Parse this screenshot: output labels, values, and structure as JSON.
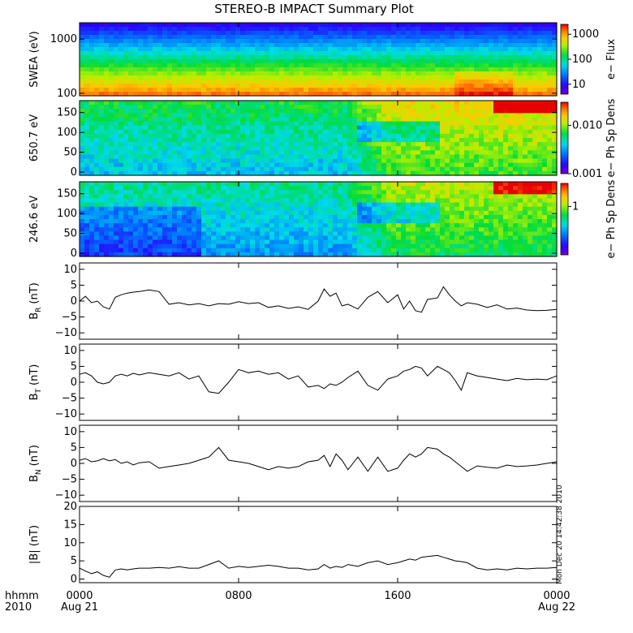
{
  "title": "STEREO-B IMPACT Summary Plot",
  "stamp": "Mon Dec 20 14:42:38 2010",
  "time_axis": {
    "row1_label": "hhmm",
    "row2_label": "2010",
    "ticks": [
      {
        "t": 0,
        "label": "0000",
        "date": "Aug 21"
      },
      {
        "t": 8,
        "label": "0800",
        "date": ""
      },
      {
        "t": 16,
        "label": "1600",
        "date": ""
      },
      {
        "t": 24,
        "label": "0000",
        "date": "Aug 22"
      }
    ],
    "range_hours": [
      0,
      24
    ]
  },
  "chart_data": [
    {
      "type": "heatmap",
      "ylabel": "SWEA (eV)",
      "yscale": "log",
      "ylim": [
        90,
        2000
      ],
      "yticks": [
        {
          "v": 100,
          "label": "100"
        },
        {
          "v": 1000,
          "label": "1000"
        }
      ],
      "colorbar": {
        "label": "e− Flux",
        "scale": "log",
        "range": [
          4,
          2500
        ],
        "ticks": [
          {
            "v": 10,
            "label": "10"
          },
          {
            "v": 100,
            "label": "100"
          },
          {
            "v": 1000,
            "label": "1000"
          }
        ]
      }
    },
    {
      "type": "heatmap",
      "ylabel": "650.7 eV",
      "ylim": [
        -8,
        180
      ],
      "yticks": [
        {
          "v": 0,
          "label": "0"
        },
        {
          "v": 50,
          "label": "50"
        },
        {
          "v": 100,
          "label": "100"
        },
        {
          "v": 150,
          "label": "150"
        }
      ],
      "colorbar": {
        "label": "e− Ph Sp Dens",
        "scale": "log",
        "range": [
          0.001,
          0.03
        ],
        "ticks": [
          {
            "v": 0.001,
            "label": "0.001"
          },
          {
            "v": 0.01,
            "label": "0.010"
          }
        ]
      }
    },
    {
      "type": "heatmap",
      "ylabel": "246.6 eV",
      "ylim": [
        -8,
        180
      ],
      "yticks": [
        {
          "v": 0,
          "label": "0"
        },
        {
          "v": 50,
          "label": "50"
        },
        {
          "v": 100,
          "label": "100"
        },
        {
          "v": 150,
          "label": "150"
        }
      ],
      "colorbar": {
        "label": "e− Ph Sp Dens",
        "scale": "log",
        "range": [
          0.1,
          3
        ],
        "ticks": [
          {
            "v": 1,
            "label": "1"
          }
        ]
      }
    },
    {
      "type": "line",
      "ylabel_base": "B",
      "ylabel_sub": "R",
      "ylabel_unit": "(nT)",
      "ylim": [
        -12,
        12
      ],
      "yticks": [
        {
          "v": -10,
          "label": "−10"
        },
        {
          "v": -5,
          "label": "−5"
        },
        {
          "v": 0,
          "label": "0"
        },
        {
          "v": 5,
          "label": "5"
        },
        {
          "v": 10,
          "label": "10"
        }
      ],
      "series": [
        {
          "x": [
            0,
            0.3,
            0.6,
            0.9,
            1.2,
            1.5,
            1.8,
            2.1,
            2.4,
            2.7,
            3.0,
            3.5,
            4.0,
            4.5,
            5.0,
            5.5,
            6.0,
            6.5,
            7.0,
            7.5,
            8.0,
            8.5,
            9.0,
            9.5,
            10.0,
            10.5,
            11.0,
            11.5,
            12.0,
            12.3,
            12.6,
            12.9,
            13.2,
            13.5,
            14.0,
            14.5,
            15.0,
            15.5,
            16.0,
            16.3,
            16.6,
            16.9,
            17.2,
            17.5,
            18.0,
            18.3,
            18.6,
            18.9,
            19.2,
            19.5,
            20.0,
            20.5,
            21.0,
            21.5,
            22.0,
            22.5,
            23.0,
            23.5,
            24.0
          ],
          "y": [
            0,
            1.5,
            -0.5,
            0,
            -1.8,
            -2.5,
            1.2,
            2,
            2.5,
            2.8,
            3,
            3.5,
            3,
            -1,
            -0.5,
            -1.2,
            -0.8,
            -1.5,
            -0.8,
            -1,
            -0.2,
            -0.8,
            -0.5,
            -2,
            -1.5,
            -2.3,
            -1.8,
            -2.6,
            0,
            3.8,
            1.5,
            2.5,
            -1.5,
            -1,
            -2.5,
            1.2,
            3,
            -0.5,
            2,
            -2.5,
            0,
            -3,
            -3.5,
            0.5,
            1,
            4.5,
            2,
            0,
            -1.5,
            -0.5,
            -1,
            -2,
            -1.2,
            -2.5,
            -2.2,
            -2.8,
            -3,
            -2.9,
            -2.6
          ]
        }
      ]
    },
    {
      "type": "line",
      "ylabel_base": "B",
      "ylabel_sub": "T",
      "ylabel_unit": "(nT)",
      "ylim": [
        -12,
        12
      ],
      "yticks": [
        {
          "v": -10,
          "label": "−10"
        },
        {
          "v": -5,
          "label": "−5"
        },
        {
          "v": 0,
          "label": "0"
        },
        {
          "v": 5,
          "label": "5"
        },
        {
          "v": 10,
          "label": "10"
        }
      ],
      "series": [
        {
          "x": [
            0,
            0.3,
            0.6,
            0.9,
            1.2,
            1.5,
            1.8,
            2.1,
            2.4,
            2.7,
            3.0,
            3.5,
            4.0,
            4.5,
            5.0,
            5.5,
            6.0,
            6.5,
            7.0,
            7.5,
            8.0,
            8.5,
            9.0,
            9.5,
            10.0,
            10.5,
            11.0,
            11.5,
            12.0,
            12.3,
            12.6,
            12.9,
            13.2,
            13.5,
            14.0,
            14.5,
            15.0,
            15.5,
            16.0,
            16.3,
            16.6,
            16.9,
            17.2,
            17.5,
            18.0,
            18.3,
            18.6,
            18.9,
            19.2,
            19.5,
            20.0,
            20.5,
            21.0,
            21.5,
            22.0,
            22.5,
            23.0,
            23.5,
            24.0
          ],
          "y": [
            2.5,
            3,
            2,
            0,
            -0.5,
            0,
            2,
            2.5,
            2,
            2.8,
            2.3,
            3,
            2.5,
            2,
            3,
            1,
            2,
            -3,
            -3.5,
            0,
            4,
            3,
            3.5,
            2.5,
            3,
            1,
            2,
            -1.5,
            -1,
            -2,
            -0.5,
            -1,
            0,
            1.5,
            3.5,
            -1,
            -2.5,
            1,
            2,
            3.5,
            4,
            5,
            4.5,
            2,
            5,
            4,
            3,
            0.5,
            -2.5,
            3,
            2,
            1.5,
            1,
            0.5,
            1.2,
            0.8,
            1,
            0.8,
            2
          ]
        }
      ]
    },
    {
      "type": "line",
      "ylabel_base": "B",
      "ylabel_sub": "N",
      "ylabel_unit": "(nT)",
      "ylim": [
        -12,
        12
      ],
      "yticks": [
        {
          "v": -10,
          "label": "−10"
        },
        {
          "v": -5,
          "label": "−5"
        },
        {
          "v": 0,
          "label": "0"
        },
        {
          "v": 5,
          "label": "5"
        },
        {
          "v": 10,
          "label": "10"
        }
      ],
      "series": [
        {
          "x": [
            0,
            0.3,
            0.6,
            0.9,
            1.2,
            1.5,
            1.8,
            2.1,
            2.4,
            2.7,
            3.0,
            3.5,
            4.0,
            4.5,
            5.0,
            5.5,
            6.0,
            6.5,
            7.0,
            7.5,
            8.0,
            8.5,
            9.0,
            9.5,
            10.0,
            10.5,
            11.0,
            11.5,
            12.0,
            12.3,
            12.6,
            12.9,
            13.2,
            13.5,
            14.0,
            14.5,
            15.0,
            15.5,
            16.0,
            16.3,
            16.6,
            16.9,
            17.2,
            17.5,
            18.0,
            18.3,
            18.6,
            18.9,
            19.2,
            19.5,
            20.0,
            20.5,
            21.0,
            21.5,
            22.0,
            22.5,
            23.0,
            23.5,
            24.0
          ],
          "y": [
            1,
            1.5,
            0.5,
            0.8,
            1.5,
            0.8,
            1.2,
            0,
            0.5,
            -0.5,
            0.2,
            0.5,
            -1.5,
            -1,
            -0.5,
            0,
            1,
            2,
            5,
            1,
            0.5,
            0,
            -1,
            -2,
            -1,
            -1.5,
            -1,
            0.5,
            1,
            2.5,
            -1,
            3,
            1,
            -2,
            2,
            -2.5,
            2,
            -2.5,
            -1.5,
            1,
            3,
            2,
            3,
            5,
            4.5,
            3,
            2,
            0.5,
            -1,
            -2.5,
            -0.8,
            -1.2,
            -1.5,
            -0.5,
            -1,
            -0.8,
            -0.5,
            0,
            0.5
          ]
        }
      ]
    },
    {
      "type": "line",
      "ylabel": "|B| (nT)",
      "ylim": [
        -1,
        20
      ],
      "yticks": [
        {
          "v": 0,
          "label": "0"
        },
        {
          "v": 5,
          "label": "5"
        },
        {
          "v": 10,
          "label": "10"
        },
        {
          "v": 15,
          "label": "15"
        },
        {
          "v": 20,
          "label": "20"
        }
      ],
      "series": [
        {
          "x": [
            0,
            0.3,
            0.6,
            0.9,
            1.2,
            1.5,
            1.8,
            2.1,
            2.4,
            2.7,
            3.0,
            3.5,
            4.0,
            4.5,
            5.0,
            5.5,
            6.0,
            6.5,
            7.0,
            7.5,
            8.0,
            8.5,
            9.0,
            9.5,
            10.0,
            10.5,
            11.0,
            11.5,
            12.0,
            12.3,
            12.6,
            12.9,
            13.2,
            13.5,
            14.0,
            14.5,
            15.0,
            15.5,
            16.0,
            16.3,
            16.6,
            16.9,
            17.2,
            17.5,
            18.0,
            18.3,
            18.6,
            18.9,
            19.2,
            19.5,
            20.0,
            20.5,
            21.0,
            21.5,
            22.0,
            22.5,
            23.0,
            23.5,
            24.0
          ],
          "y": [
            3,
            2.2,
            1.5,
            2,
            1,
            0.5,
            2.5,
            2.8,
            2.5,
            2.8,
            3,
            3,
            3.2,
            3,
            3.4,
            3,
            3,
            4,
            5,
            3,
            3.5,
            3.2,
            3.5,
            3.8,
            3.5,
            3,
            3,
            2.5,
            2.8,
            4,
            3,
            3.5,
            3.2,
            4,
            3.5,
            4.5,
            5,
            4,
            4.5,
            5,
            5.5,
            5.2,
            6,
            6.2,
            6.5,
            6,
            5.5,
            5,
            4.8,
            4.5,
            3,
            2.5,
            2.8,
            2.5,
            3,
            2.8,
            3,
            3,
            3.2
          ]
        }
      ]
    }
  ]
}
